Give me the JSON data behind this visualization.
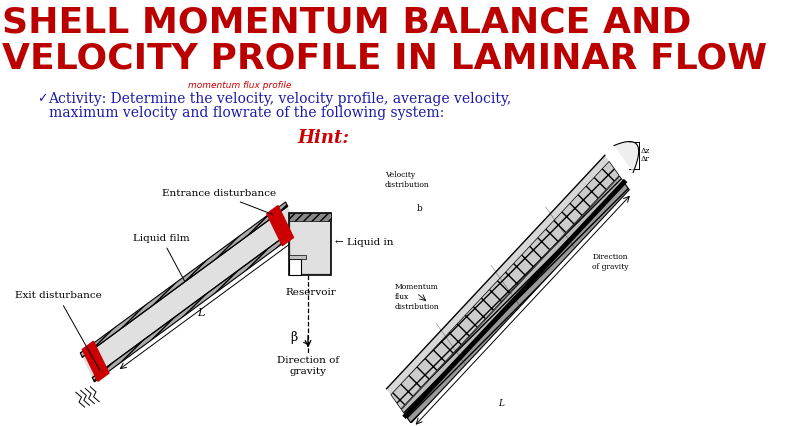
{
  "title_line1": "SHELL MOMENTUM BALANCE AND",
  "title_line2": "VELOCITY PROFILE IN LAMINAR FLOW",
  "title_color": "#bb0000",
  "title_annotation": "momentum flux profile",
  "title_annotation_color": "#cc0000",
  "activity_line1": "Activity: Determine the velocity, velocity profile, average velocity,",
  "activity_line2": "maximum velocity and flowrate of the following system:",
  "activity_color": "#1a1aaa",
  "hint_text": "Hint:",
  "hint_color": "#cc0000",
  "bg_color": "#ffffff",
  "checkmark_color": "#1a1aaa",
  "label_color": "#000000",
  "title_font_size": 26,
  "activity_font_size": 10,
  "hint_font_size": 13,
  "diagram_labels": {
    "entrance_disturbance": "Entrance disturbance",
    "liquid_film": "Liquid film",
    "liquid_in": "← Liquid in",
    "reservoir": "Reservoir",
    "exit_disturbance": "Exit disturbance",
    "direction_gravity": "Direction of\ngravity",
    "L_label": "L",
    "beta_label": "β",
    "velocity_distribution": "Velocity\ndistribution",
    "momentum_flux": "Momentum\nflux\ndistribution",
    "direction_gravity2": "Direction\nof gravity",
    "b_label": "b",
    "L_label2": "L"
  }
}
